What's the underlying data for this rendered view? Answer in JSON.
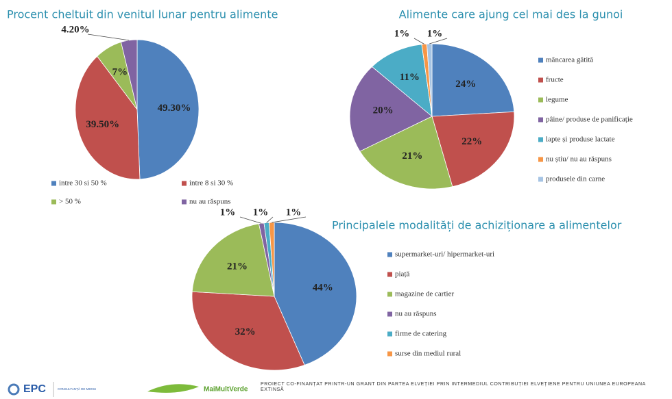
{
  "chart_data": [
    {
      "type": "pie",
      "title": "Procent cheltuit din venitul lunar pentru alimente",
      "categories": [
        "intre 30 si 50 %",
        "intre 8 si 30 %",
        "> 50 %",
        "nu au răspuns"
      ],
      "values": [
        49.3,
        39.5,
        7,
        4.2
      ],
      "value_labels": [
        "49.30%",
        "39.50%",
        "7%",
        "4.20%"
      ],
      "colors": [
        "#4f81bd",
        "#c0504d",
        "#9bbb59",
        "#8064a2"
      ]
    },
    {
      "type": "pie",
      "title": "Alimente care ajung cel mai des la gunoi",
      "categories": [
        "mâncarea gătită",
        "fructe",
        "legume",
        "pâine/ produse de panificație",
        "lapte și produse lactate",
        "nu știu/ nu au răspuns",
        "produsele din carne"
      ],
      "values": [
        24,
        22,
        21,
        20,
        11,
        1,
        1
      ],
      "value_labels": [
        "24%",
        "22%",
        "21%",
        "20%",
        "11%",
        "1%",
        "1%"
      ],
      "colors": [
        "#4f81bd",
        "#c0504d",
        "#9bbb59",
        "#8064a2",
        "#4bacc6",
        "#f79646",
        "#a6c4e4"
      ]
    },
    {
      "type": "pie",
      "title": "Principalele modalități de achiziționare a alimentelor",
      "categories": [
        "supermarket-uri/ hipermarket-uri",
        "piață",
        "magazine de cartier",
        "nu au răspuns",
        "firme de catering",
        "surse din mediul rural"
      ],
      "values": [
        44,
        32,
        21,
        1,
        1,
        1
      ],
      "value_labels": [
        "44%",
        "32%",
        "21%",
        "1%",
        "1%",
        "1%"
      ],
      "colors": [
        "#4f81bd",
        "#c0504d",
        "#9bbb59",
        "#8064a2",
        "#4bacc6",
        "#f79646"
      ]
    }
  ],
  "footer": {
    "logo1": "EPC",
    "logo1_sub": "CONSULTANȚĂ DE MEDIU",
    "logo2": "MaiMultVerde",
    "text": "PROIECT CO-FINANȚAT PRINTR-UN GRANT DIN PARTEA ELVEȚIEI PRIN INTERMEDIUL CONTRIBUȚIEI ELVEȚIENE PENTRU UNIUNEA EUROPEANĂ EXTINSĂ"
  }
}
